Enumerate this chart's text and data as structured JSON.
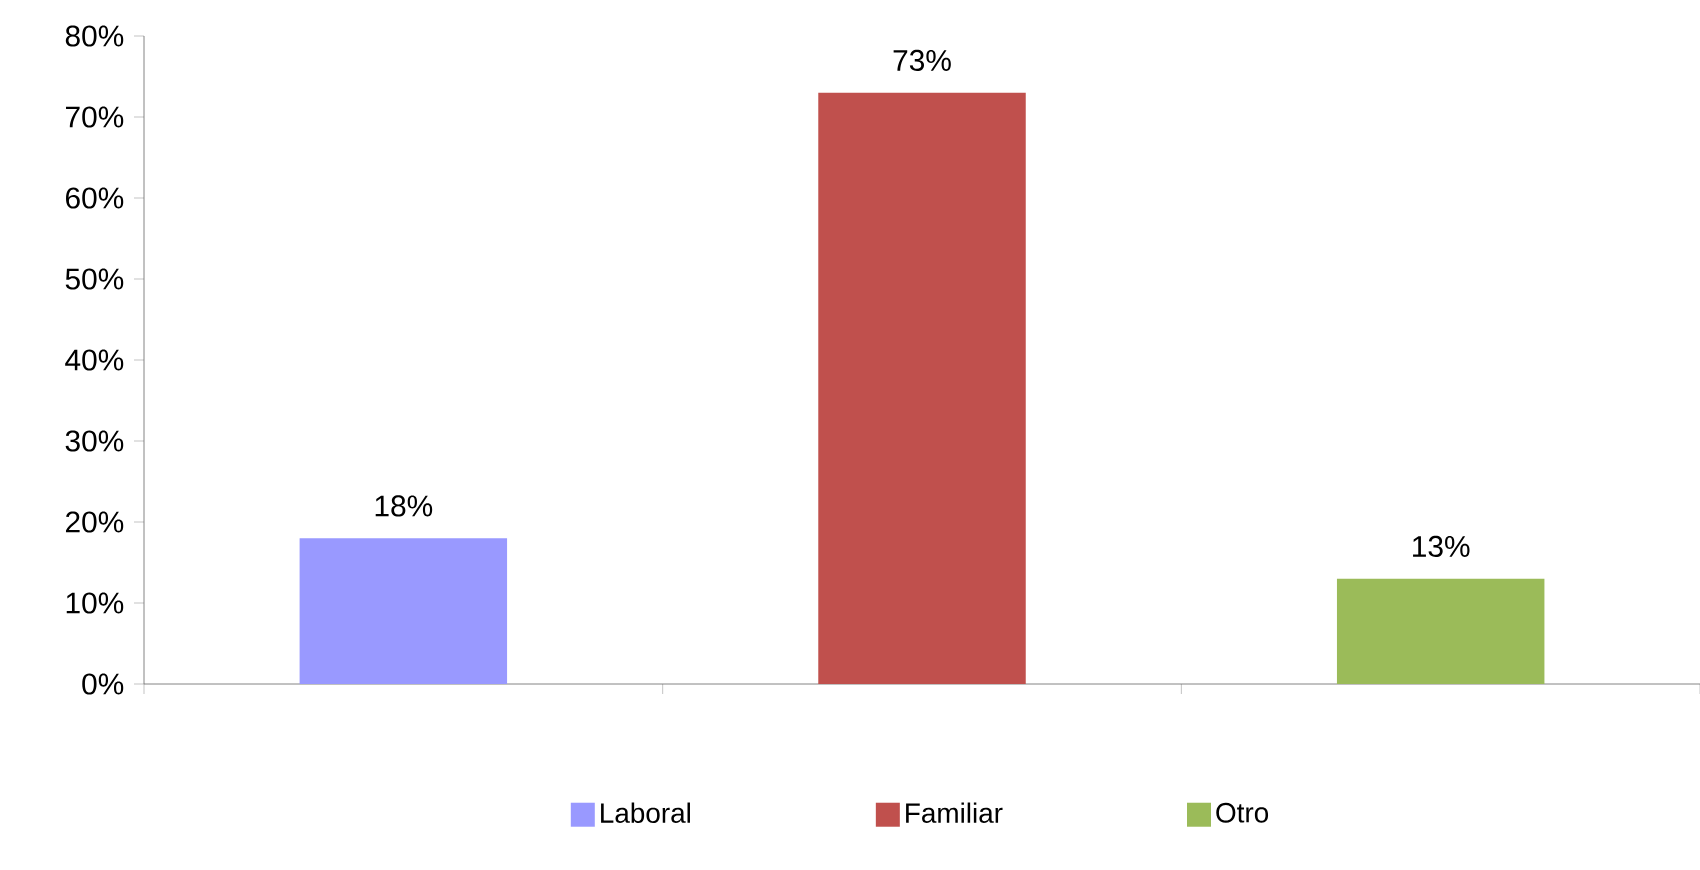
{
  "chart_data": {
    "type": "bar",
    "categories": [
      null,
      null,
      null
    ],
    "series": [
      {
        "name": "Laboral",
        "color": "#9999ff",
        "values": [
          18,
          null,
          null
        ],
        "value_labels": [
          "18%",
          null,
          null
        ]
      },
      {
        "name": "Familiar",
        "color": "#c0504d",
        "values": [
          null,
          73,
          null
        ],
        "value_labels": [
          null,
          "73%",
          null
        ]
      },
      {
        "name": "Otro",
        "color": "#9bbb59",
        "values": [
          null,
          null,
          13
        ],
        "value_labels": [
          null,
          null,
          "13%"
        ]
      }
    ],
    "ylim": [
      0,
      80
    ],
    "yticks": [
      {
        "value": 0,
        "label": "0%"
      },
      {
        "value": 10,
        "label": "10%"
      },
      {
        "value": 20,
        "label": "20%"
      },
      {
        "value": 30,
        "label": "30%"
      },
      {
        "value": 40,
        "label": "40%"
      },
      {
        "value": 50,
        "label": "50%"
      },
      {
        "value": 60,
        "label": "60%"
      },
      {
        "value": 70,
        "label": "70%"
      },
      {
        "value": 80,
        "label": "80%"
      }
    ],
    "legend": "bottom"
  }
}
